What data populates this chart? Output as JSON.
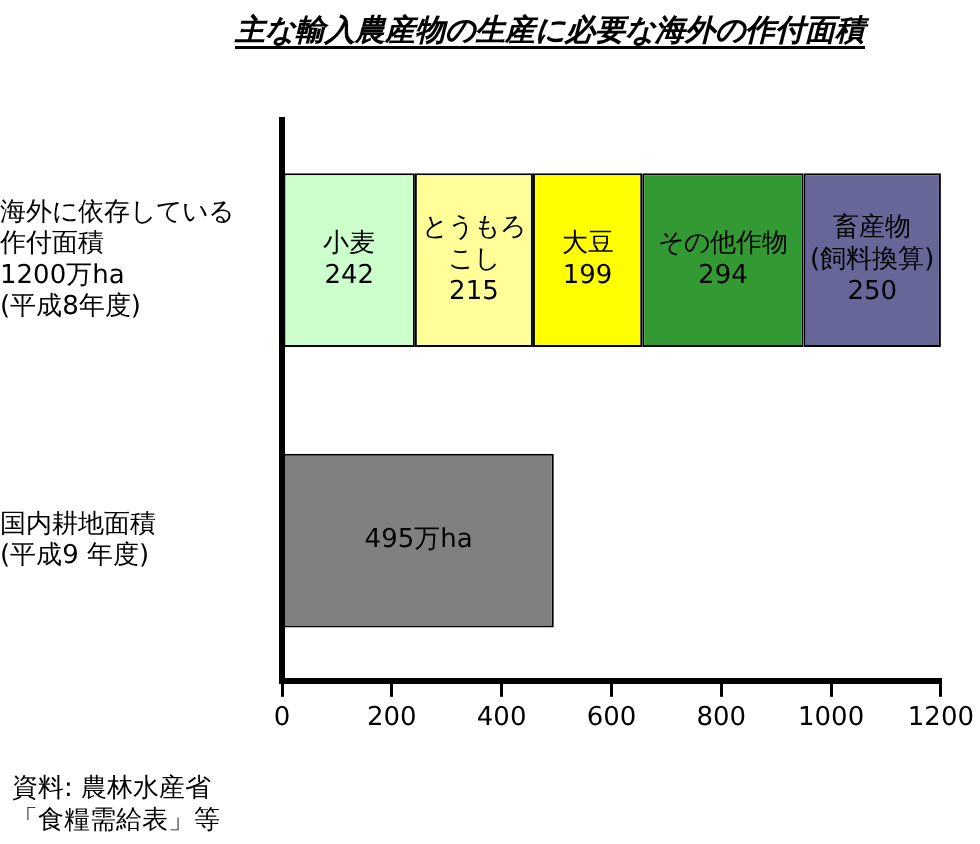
{
  "chart_data": {
    "type": "bar",
    "orientation": "horizontal",
    "stacked": true,
    "title": "主な輸入農産物の生産に必要な海外の作付面積",
    "categories": [
      "海外に依存している作付面積 1200万ha (平成8年度)",
      "国内耕地面積(平成9 年度)"
    ],
    "series": [
      {
        "name": "小麦",
        "color": "#ccffcc",
        "values": [
          242,
          null
        ],
        "value_labels": [
          "242",
          null
        ]
      },
      {
        "name": "とうもろこし",
        "color": "#ffff99",
        "values": [
          215,
          null
        ],
        "value_labels": [
          "215",
          null
        ]
      },
      {
        "name": "大豆",
        "color": "#ffff00",
        "values": [
          199,
          null
        ],
        "value_labels": [
          "199",
          null
        ]
      },
      {
        "name": "その他作物",
        "color": "#339933",
        "values": [
          294,
          null
        ],
        "value_labels": [
          "294",
          null
        ]
      },
      {
        "name": "畜産物(飼料換算)",
        "color": "#666699",
        "values": [
          250,
          null
        ],
        "value_labels": [
          "250",
          null
        ]
      },
      {
        "color": "#808080",
        "values": [
          null,
          495
        ],
        "value_labels": [
          null,
          "495万ha"
        ]
      }
    ],
    "xlim": [
      0,
      1200
    ],
    "xticks": [
      0,
      200,
      400,
      600,
      800,
      1000,
      1200
    ],
    "grid": false,
    "legend": false,
    "annotations": [
      "資料: 農林水産省「食糧需給表」等"
    ]
  }
}
